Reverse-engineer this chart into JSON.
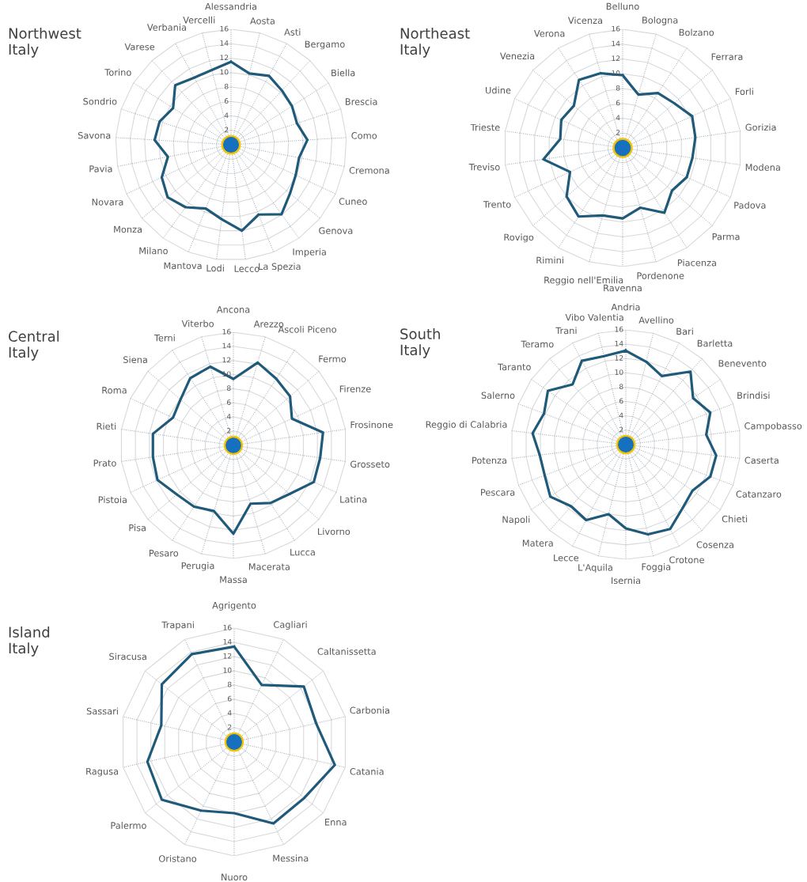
{
  "chart_data": [
    {
      "type": "radar",
      "title": "Northwest\nItaly",
      "categories": [
        "Alessandria",
        "Aosta",
        "Asti",
        "Bergamo",
        "Biella",
        "Brescia",
        "Como",
        "Cremona",
        "Cuneo",
        "Genova",
        "Imperia",
        "La Spezia",
        "Lecco",
        "Lodi",
        "Mantova",
        "Milano",
        "Monza",
        "Novara",
        "Pavia",
        "Savona",
        "Sondrio",
        "Torino",
        "Varese",
        "Verbania",
        "Vercelli"
      ],
      "series": [
        {
          "color": "#1f5a7a",
          "values": [
            11.5,
            10.2,
            10.9,
            10.3,
            10,
            9.6,
            10.6,
            9.6,
            9.9,
            10.6,
            11.9,
            10.4,
            12,
            10.4,
            9.5,
            10.7,
            11.4,
            10.6,
            8.9,
            10.6,
            10.4,
            9.5,
            11.3,
            10.6,
            10.7
          ]
        }
      ],
      "ylim": [
        0,
        16
      ],
      "yticks": [
        2,
        4,
        6,
        8,
        10,
        12,
        14,
        16
      ],
      "grid": true,
      "marker": "none",
      "line_style": "solid"
    },
    {
      "type": "radar",
      "title": "Northeast\nItaly",
      "categories": [
        "Belluno",
        "Bologna",
        "Bolzano",
        "Ferrara",
        "Forli",
        "Gorizia",
        "Modena",
        "Padova",
        "Parma",
        "Piacenza",
        "Pordenone",
        "Ravenna",
        "Reggio nell'Emilia",
        "Rimini",
        "Rovigo",
        "Trento",
        "Treviso",
        "Trieste",
        "Udine",
        "Venezia",
        "Verona",
        "Vicenza"
      ],
      "series": [
        {
          "color": "#1f5a7a",
          "values": [
            9.8,
            7.5,
            8.8,
            9.2,
            10.3,
            9.9,
            9.5,
            9.5,
            8.8,
            10.4,
            8.4,
            9.5,
            9.5,
            11,
            10,
            7.8,
            10.8,
            8.5,
            9.1,
            8.7,
            10.9,
            10.5
          ]
        }
      ],
      "ylim": [
        0,
        16
      ],
      "yticks": [
        2,
        4,
        6,
        8,
        10,
        12,
        14,
        16
      ],
      "grid": true,
      "marker": "none",
      "line_style": "solid"
    },
    {
      "type": "radar",
      "title": "Central\nItaly",
      "categories": [
        "Ancona",
        "Arezzo",
        "Ascoli Piceno",
        "Fermo",
        "Firenze",
        "Frosinone",
        "Grosseto",
        "Latina",
        "Livorno",
        "Lucca",
        "Macerata",
        "Massa",
        "Perugia",
        "Pesaro",
        "Pisa",
        "Pistoia",
        "Prato",
        "Rieti",
        "Roma",
        "Siena",
        "Terni",
        "Viterbo"
      ],
      "series": [
        {
          "color": "#1f5a7a",
          "values": [
            9.4,
            12.2,
            11.2,
            10.6,
            9.1,
            12.8,
            12.4,
            12.5,
            10.5,
            9.7,
            8.6,
            12.5,
            9.7,
            10.3,
            10.6,
            11.8,
            11.5,
            11.5,
            9.4,
            9.9,
            11.3,
            11.6
          ]
        }
      ],
      "ylim": [
        0,
        16
      ],
      "yticks": [
        2,
        4,
        6,
        8,
        10,
        12,
        14,
        16
      ],
      "grid": true,
      "marker": "none",
      "line_style": "solid"
    },
    {
      "type": "radar",
      "title": "South\nItaly",
      "categories": [
        "Andria",
        "Avellino",
        "Bari",
        "Barletta",
        "Benevento",
        "Brindisi",
        "Campobasso",
        "Caserta",
        "Catanzaro",
        "Chieti",
        "Cosenza",
        "Crotone",
        "Foggia",
        "Isernia",
        "L'Aquila",
        "Lecce",
        "Matera",
        "Napoli",
        "Pescara",
        "Potenza",
        "Reggio di Calabria",
        "Salerno",
        "Taranto",
        "Teramo",
        "Trani",
        "Vibo Valentia"
      ],
      "series": [
        {
          "color": "#1f5a7a",
          "values": [
            13.1,
            11.9,
            10.8,
            13.6,
            11.4,
            12.6,
            11.3,
            12.7,
            12.6,
            11.3,
            11.9,
            13.3,
            12.9,
            11.7,
            10,
            11.9,
            11.5,
            12.8,
            12.1,
            12.1,
            13.1,
            12.2,
            13.2,
            11.2,
            13.2,
            12.7
          ]
        }
      ],
      "ylim": [
        0,
        16
      ],
      "yticks": [
        2,
        4,
        6,
        8,
        10,
        12,
        14,
        16
      ],
      "grid": true,
      "marker": "none",
      "line_style": "solid"
    },
    {
      "type": "radar",
      "title": "Island\nItaly",
      "categories": [
        "Agrigento",
        "Cagliari",
        "Caltanissetta",
        "Carbonia",
        "Catania",
        "Enna",
        "Messina",
        "Nuoro",
        "Oristano",
        "Palermo",
        "Ragusa",
        "Sassari",
        "Siracusa",
        "Trapani"
      ],
      "series": [
        {
          "color": "#1f5a7a",
          "values": [
            13.4,
            8.9,
            12.5,
            11.8,
            14.5,
            12.6,
            12.7,
            10,
            10.7,
            13,
            12.5,
            10.5,
            13,
            13.7
          ]
        }
      ],
      "ylim": [
        0,
        16
      ],
      "yticks": [
        2,
        4,
        6,
        8,
        10,
        12,
        14,
        16
      ],
      "grid": true,
      "marker": "none",
      "line_style": "solid"
    }
  ]
}
